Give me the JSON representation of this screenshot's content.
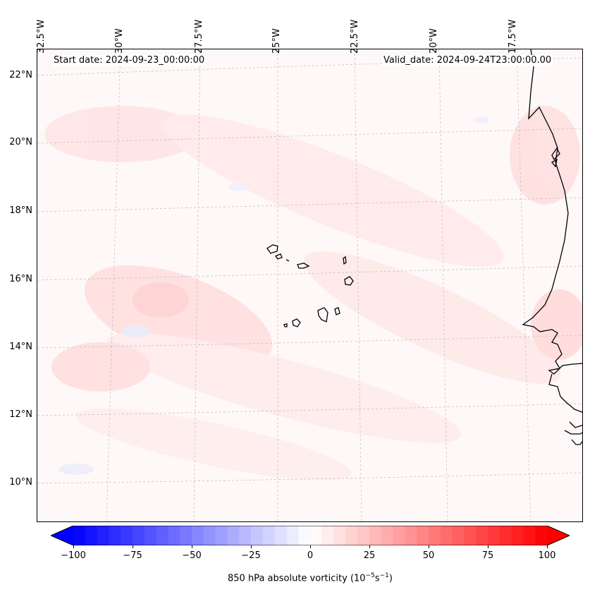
{
  "map": {
    "header_left": "Start date: 2024-09-23_00:00:00",
    "header_right": "Valid_date: 2024-09-24T23:00:00.00",
    "lat_labels": [
      "22°N",
      "20°N",
      "18°N",
      "16°N",
      "14°N",
      "12°N",
      "10°N"
    ],
    "lon_labels": [
      "32.5°W",
      "30°W",
      "27.5°W",
      "25°W",
      "22.5°W",
      "20°W",
      "17.5°W"
    ],
    "field": "850 hPa absolute vorticity",
    "region": "Cape Verde Islands and West African coast"
  },
  "colorbar": {
    "label_main": "850 hPa absolute vorticity (10",
    "label_exp1": "−5",
    "label_mid": "s",
    "label_exp2": "−1",
    "label_end": ")",
    "ticks": [
      "−100",
      "−75",
      "−50",
      "−25",
      "0",
      "25",
      "50",
      "75",
      "100"
    ],
    "min": -100,
    "max": 100,
    "levels": 40,
    "colormap": "bwr",
    "color_low": "#0000ff",
    "color_mid": "#ffffff",
    "color_high": "#ff0000"
  }
}
